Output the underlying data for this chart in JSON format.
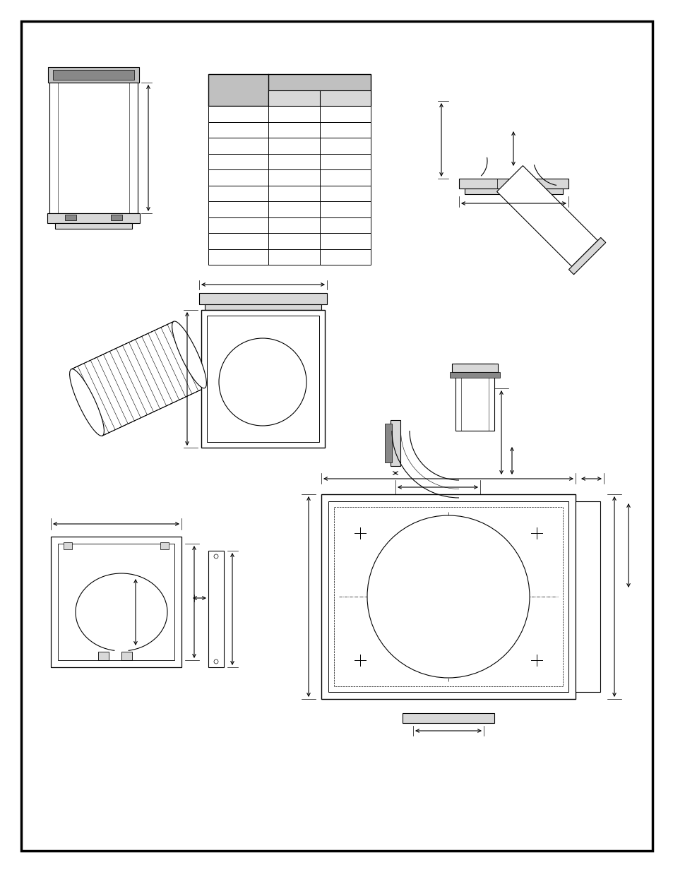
{
  "bg_color": "#ffffff",
  "line_color": "#000000",
  "gray_color": "#c0c0c0",
  "light_gray": "#d8d8d8",
  "dark_gray": "#888888"
}
